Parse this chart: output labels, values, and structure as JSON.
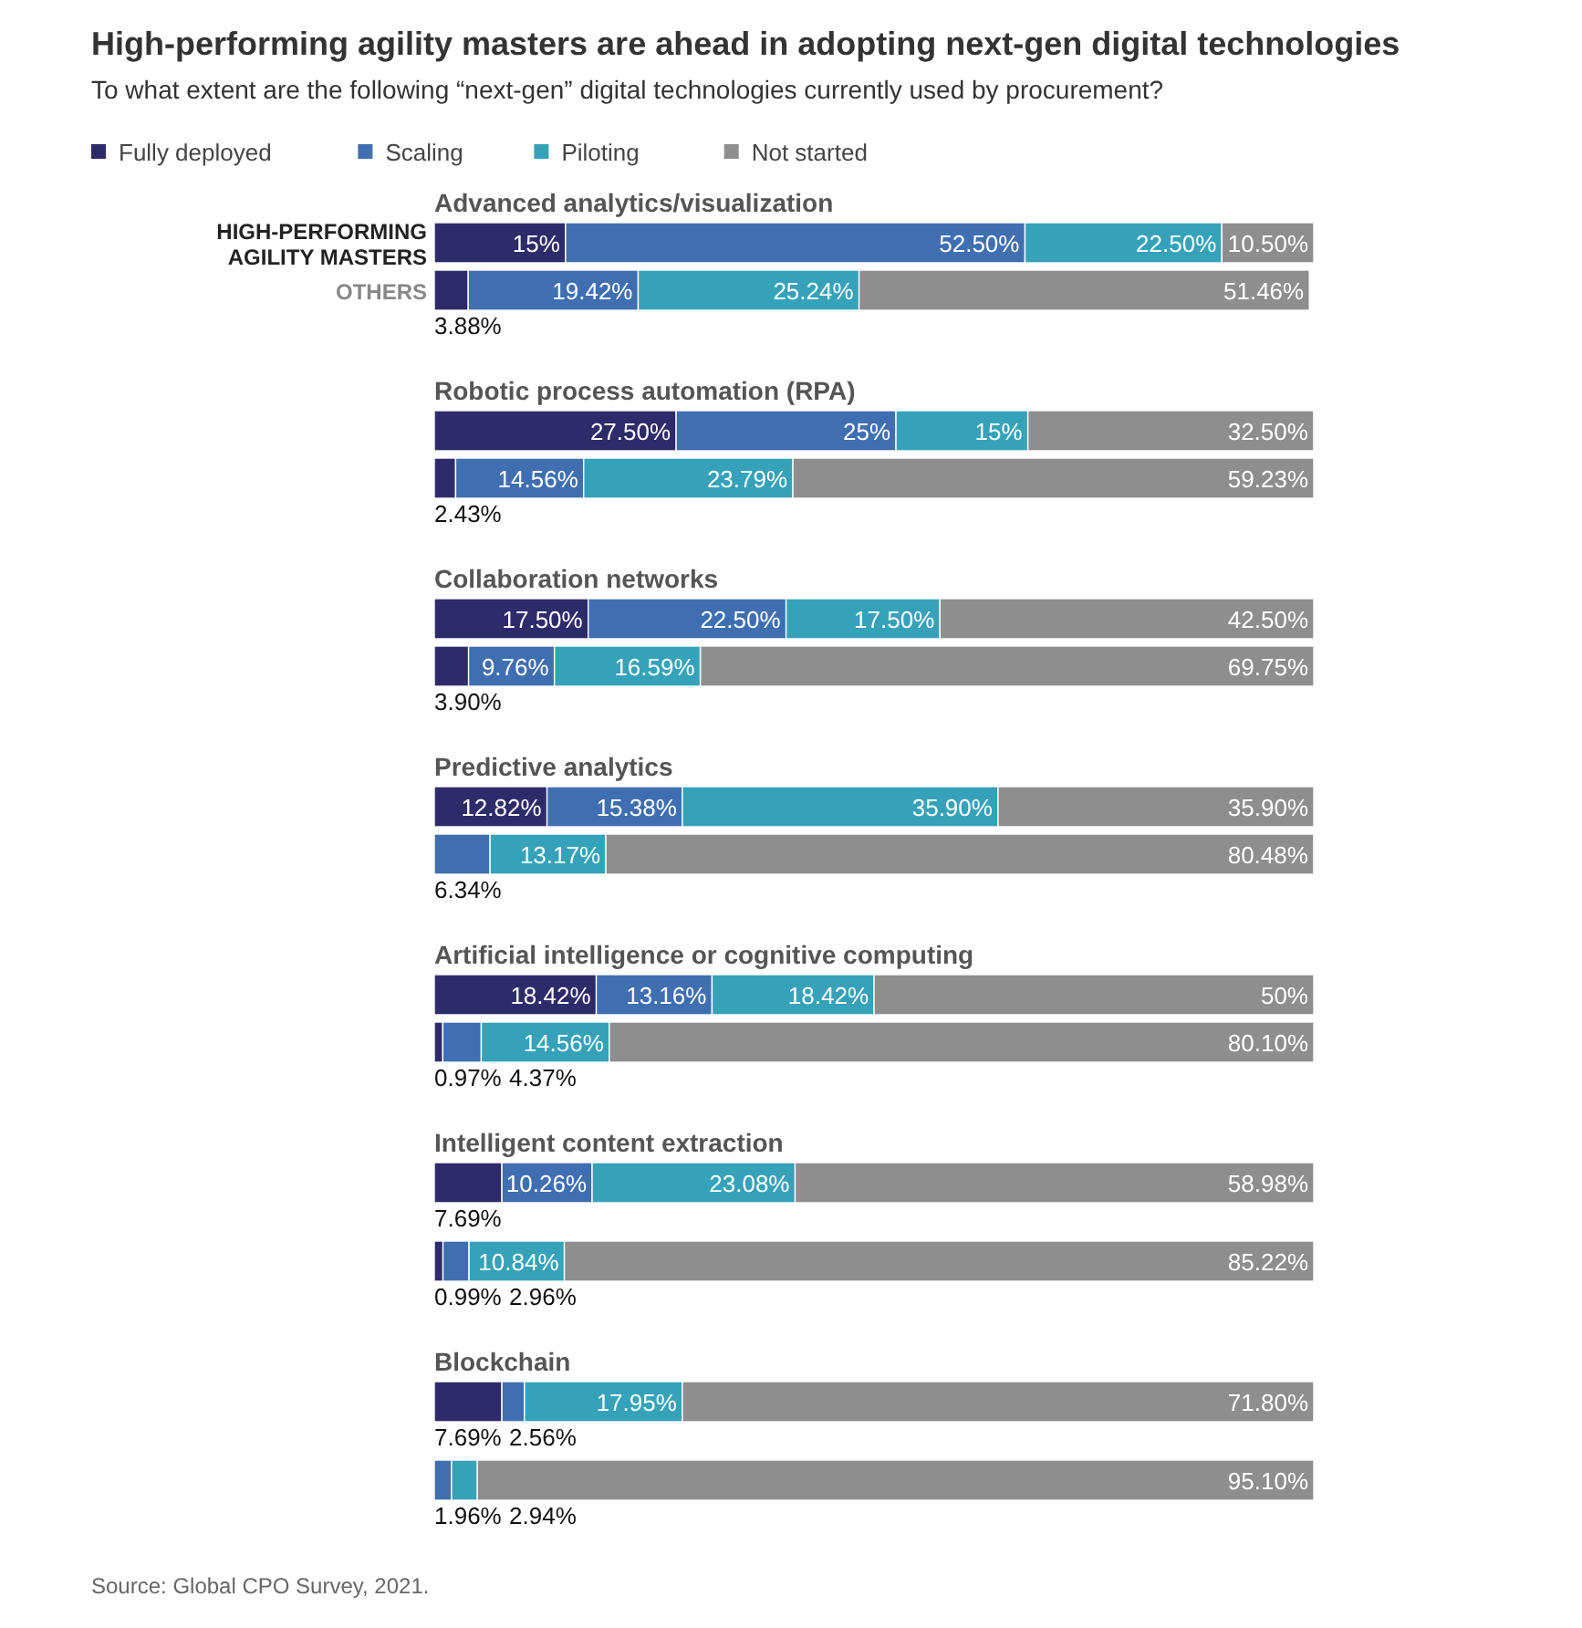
{
  "chart_data": [
    {
      "type": "other",
      "title": "High-performing agility masters are ahead in adopting next-gen digital technologies",
      "subtitle": "To what extent are the following “next-gen” digital technologies currently used by procurement?"
    },
    {
      "type": "bar",
      "title": "Advanced analytics/visualization",
      "orientation": "horizontal",
      "stacked": true,
      "legend": "top left",
      "categories": [
        "HIGH-PERFORMING AGILITY MASTERS",
        "OTHERS"
      ],
      "series": [
        {
          "name": "Fully deployed",
          "color": "#2e2b6b",
          "values": [
            15,
            3.88
          ],
          "value_labels": [
            "15%",
            "3.88%"
          ]
        },
        {
          "name": "Scaling",
          "color": "#3f6fb1",
          "values": [
            52.5,
            19.42
          ],
          "value_labels": [
            "52.50%",
            "19.42%"
          ]
        },
        {
          "name": "Piloting",
          "color": "#36a2b9",
          "values": [
            22.5,
            25.24
          ],
          "value_labels": [
            "22.50%",
            "25.24%"
          ]
        },
        {
          "name": "Not started",
          "color": "#8e8e8e",
          "values": [
            10.5,
            51.46
          ],
          "value_labels": [
            "10.50%",
            "51.46%"
          ]
        }
      ]
    },
    {
      "type": "bar",
      "title": "Robotic process automation (RPA)",
      "orientation": "horizontal",
      "stacked": true,
      "categories": [
        null,
        null
      ],
      "series": [
        {
          "color": "#2e2b6b",
          "values": [
            27.5,
            2.43
          ],
          "value_labels": [
            "27.50%",
            "2.43%"
          ]
        },
        {
          "color": "#3f6fb1",
          "values": [
            25,
            14.56
          ],
          "value_labels": [
            "25%",
            "14.56%"
          ]
        },
        {
          "color": "#36a2b9",
          "values": [
            15,
            23.79
          ],
          "value_labels": [
            "15%",
            "23.79%"
          ]
        },
        {
          "color": "#8e8e8e",
          "values": [
            32.5,
            59.23
          ],
          "value_labels": [
            "32.50%",
            "59.23%"
          ]
        }
      ]
    },
    {
      "type": "bar",
      "title": "Collaboration networks",
      "orientation": "horizontal",
      "stacked": true,
      "categories": [
        null,
        null
      ],
      "series": [
        {
          "color": "#2e2b6b",
          "values": [
            17.5,
            3.9
          ],
          "value_labels": [
            "17.50%",
            "3.90%"
          ]
        },
        {
          "color": "#3f6fb1",
          "values": [
            22.5,
            9.76
          ],
          "value_labels": [
            "22.50%",
            "9.76%"
          ]
        },
        {
          "color": "#36a2b9",
          "values": [
            17.5,
            16.59
          ],
          "value_labels": [
            "17.50%",
            "16.59%"
          ]
        },
        {
          "color": "#8e8e8e",
          "values": [
            42.5,
            69.75
          ],
          "value_labels": [
            "42.50%",
            "69.75%"
          ]
        }
      ]
    },
    {
      "type": "bar",
      "title": "Predictive analytics",
      "orientation": "horizontal",
      "stacked": true,
      "categories": [
        null,
        null
      ],
      "series": [
        {
          "color": "#2e2b6b",
          "values": [
            12.82,
            0
          ],
          "value_labels": [
            "12.82%",
            null
          ]
        },
        {
          "color": "#3f6fb1",
          "values": [
            15.38,
            6.34
          ],
          "value_labels": [
            "15.38%",
            "6.34%"
          ]
        },
        {
          "color": "#36a2b9",
          "values": [
            35.9,
            13.17
          ],
          "value_labels": [
            "35.90%",
            "13.17%"
          ]
        },
        {
          "color": "#8e8e8e",
          "values": [
            35.9,
            80.48
          ],
          "value_labels": [
            "35.90%",
            "80.48%"
          ]
        }
      ]
    },
    {
      "type": "bar",
      "title": "Artificial intelligence or cognitive computing",
      "orientation": "horizontal",
      "stacked": true,
      "categories": [
        null,
        null
      ],
      "series": [
        {
          "color": "#2e2b6b",
          "values": [
            18.42,
            0.97
          ],
          "value_labels": [
            "18.42%",
            "0.97%"
          ]
        },
        {
          "color": "#3f6fb1",
          "values": [
            13.16,
            4.37
          ],
          "value_labels": [
            "13.16%",
            "4.37%"
          ]
        },
        {
          "color": "#36a2b9",
          "values": [
            18.42,
            14.56
          ],
          "value_labels": [
            "18.42%",
            "14.56%"
          ]
        },
        {
          "color": "#8e8e8e",
          "values": [
            50,
            80.1
          ],
          "value_labels": [
            "50%",
            "80.10%"
          ]
        }
      ]
    },
    {
      "type": "bar",
      "title": "Intelligent content extraction",
      "orientation": "horizontal",
      "stacked": true,
      "categories": [
        null,
        null
      ],
      "series": [
        {
          "color": "#2e2b6b",
          "values": [
            7.69,
            0.99
          ],
          "value_labels": [
            "7.69%",
            "0.99%"
          ]
        },
        {
          "color": "#3f6fb1",
          "values": [
            10.26,
            2.96
          ],
          "value_labels": [
            "10.26%",
            "2.96%"
          ]
        },
        {
          "color": "#36a2b9",
          "values": [
            23.08,
            10.84
          ],
          "value_labels": [
            "23.08%",
            "10.84%"
          ]
        },
        {
          "color": "#8e8e8e",
          "values": [
            58.98,
            85.22
          ],
          "value_labels": [
            "58.98%",
            "85.22%"
          ]
        }
      ]
    },
    {
      "type": "bar",
      "title": "Blockchain",
      "orientation": "horizontal",
      "stacked": true,
      "categories": [
        null,
        null
      ],
      "annotations": [
        "Source: Global CPO Survey, 2021."
      ],
      "series": [
        {
          "color": "#2e2b6b",
          "values": [
            7.69,
            0
          ],
          "value_labels": [
            "7.69%",
            null
          ]
        },
        {
          "color": "#3f6fb1",
          "values": [
            2.56,
            1.96
          ],
          "value_labels": [
            "2.56%",
            "1.96%"
          ]
        },
        {
          "color": "#36a2b9",
          "values": [
            17.95,
            2.94
          ],
          "value_labels": [
            "17.95%",
            "2.94%"
          ]
        },
        {
          "color": "#8e8e8e",
          "values": [
            71.8,
            95.1
          ],
          "value_labels": [
            "71.80%",
            "95.10%"
          ]
        }
      ]
    }
  ]
}
